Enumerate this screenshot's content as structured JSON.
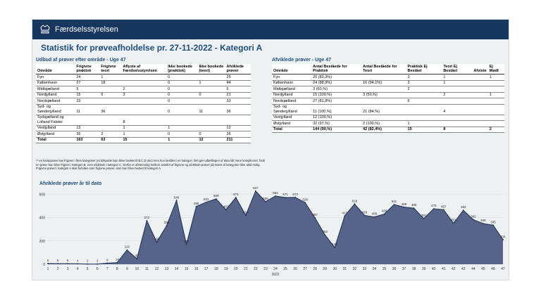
{
  "header": {
    "brand": "Færdselsstyrelsen"
  },
  "title": "Statistik for prøveafholdelse pr. 27-11-2022 - Kategori A",
  "left_table": {
    "title": "Udbud af prøver efter område - Uge 47",
    "columns": [
      "Område",
      "Frigivne praktisk",
      "Frigivne teori",
      "Aflyste af Færdselsstyrelsen",
      "Ikke bookede (praktisk)",
      "Ikke bookede (teori)",
      "Afviklede prøver"
    ],
    "rows": [
      [
        "Fyn",
        24,
        1,
        null,
        0,
        null,
        25
      ],
      [
        "København",
        27,
        18,
        null,
        0,
        1,
        44
      ],
      [
        "Midtsjælland",
        5,
        null,
        2,
        0,
        null,
        5
      ],
      [
        "Nordjylland",
        15,
        6,
        3,
        0,
        0,
        21
      ],
      [
        "Nordsjælland",
        33,
        null,
        null,
        0,
        null,
        33
      ],
      [
        "Syd- og Sønderjylland",
        11,
        36,
        null,
        0,
        11,
        36
      ],
      [
        "Sydsjælland og Lolland Falster",
        null,
        null,
        8,
        null,
        null,
        null
      ],
      [
        "Vestjylland",
        13,
        null,
        1,
        1,
        null,
        12
      ],
      [
        "Østjylland",
        35,
        2,
        1,
        0,
        0,
        35
      ],
      [
        "Total",
        163,
        63,
        15,
        1,
        12,
        211
      ]
    ]
  },
  "right_table": {
    "title": "Afviklede prøver - Uge 47",
    "columns": [
      "Område",
      "Antal Beståede for Praktisk",
      "Antal Beståede for Teori",
      "Praktisk Ej Bestået",
      "Teori Ej Bestået",
      "Afviste",
      "Ej Mødt"
    ],
    "rows": [
      [
        "Fyn",
        "20 (83,3%)",
        null,
        3,
        1,
        null,
        1
      ],
      [
        "København",
        "24 (88,9%)",
        "16 (94,1%)",
        3,
        1,
        null,
        null
      ],
      [
        "Midtsjælland",
        "3 (60,%)",
        null,
        2,
        null,
        null,
        null
      ],
      [
        "Nordjylland",
        "15 (100,%)",
        "3 (50,%)",
        null,
        2,
        null,
        1
      ],
      [
        "Nordsjælland",
        "27 (81,8%)",
        null,
        6,
        null,
        null,
        null
      ],
      [
        "Syd- og Sønderjylland",
        "11 (100,%)",
        "21 (84,%)",
        null,
        4,
        null,
        null
      ],
      [
        "Vestjylland",
        "12 (100,%)",
        null,
        null,
        null,
        null,
        null
      ],
      [
        "Østjylland",
        "32 (97,%)",
        "2 (100,%)",
        1,
        null,
        null,
        null
      ],
      [
        "Total",
        "144 (90,%)",
        "42 (82,4%)",
        15,
        8,
        null,
        2
      ]
    ]
  },
  "footnote": "** en kampprøve kan frigives i flere kategorier (et tidspunkt kan blive booket til B,C,D osv) men kun bestået i en kategori. Det gør udtællingen af data lidt mere kompliceret, fordi en prøve kan blive frigivet i Kategori B, men afviklede i kategori C. Derfor er afstemning mellem antallet af frigivne og afviklede prøver på tværs af kategorier ikke altid mulig. Frigivne prøver i kategori A skal forlodes som frigivne prøver, som kan blive booket til kategori A.",
  "chart_data": {
    "type": "area",
    "title": "Afviklede prøver år til dato",
    "xlabel": "2022",
    "x": [
      1,
      2,
      3,
      4,
      5,
      6,
      7,
      8,
      9,
      10,
      11,
      12,
      13,
      14,
      15,
      16,
      17,
      18,
      19,
      20,
      21,
      22,
      23,
      24,
      25,
      26,
      27,
      28,
      29,
      30,
      31,
      32,
      33,
      34,
      35,
      36,
      37,
      38,
      39,
      40,
      41,
      42,
      43,
      44,
      45,
      46,
      47
    ],
    "values": [
      6,
      5,
      5,
      4,
      2,
      2,
      9,
      14,
      122,
      47,
      372,
      190,
      330,
      546,
      170,
      495,
      531,
      559,
      467,
      571,
      419,
      627,
      536,
      584,
      571,
      573,
      528,
      397,
      252,
      143,
      413,
      516,
      418,
      405,
      429,
      511,
      489,
      480,
      391,
      475,
      467,
      351,
      462,
      382,
      348,
      335,
      211
    ],
    "xlim": [
      1,
      47
    ],
    "ylim": [
      0,
      650
    ],
    "yticks": [
      0,
      200,
      400,
      600
    ],
    "color": "#56648a",
    "line_color": "#2c3a5e"
  }
}
